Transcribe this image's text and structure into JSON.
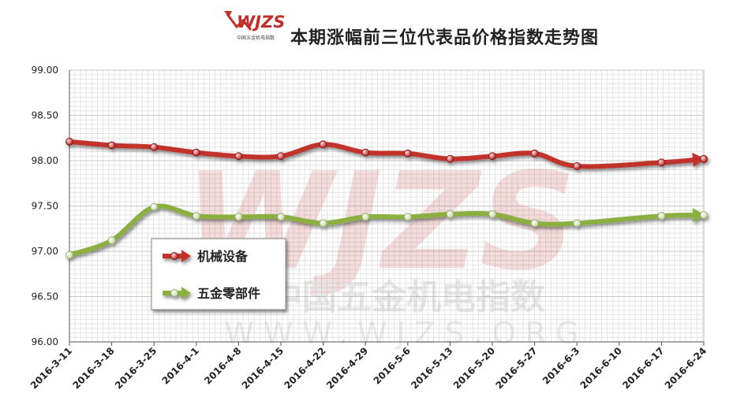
{
  "brand": {
    "logo_text": "WJZS",
    "logo_sub": "中国五金机电指数"
  },
  "watermark": {
    "main": "WJZS",
    "sub": "中国五金机电指数",
    "url": "WWW.WJZS.ORG"
  },
  "chart_data": {
    "type": "line",
    "title": "本期涨幅前三位代表品价格指数走势图",
    "xlabel": "",
    "ylabel": "",
    "categories": [
      "2016-3-11",
      "2016-3-18",
      "2016-3-25",
      "2016-4-1",
      "2016-4-8",
      "2016-4-15",
      "2016-4-22",
      "2016-4-29",
      "2016-5-6",
      "2016-5-13",
      "2016-5-20",
      "2016-5-27",
      "2016-6-3",
      "2016-6-10",
      "2016-6-17",
      "2016-6-24"
    ],
    "yticks": [
      "99.00",
      "98.50",
      "98.00",
      "97.50",
      "97.00",
      "96.50",
      "96.00"
    ],
    "ylim": [
      96,
      99
    ],
    "grid": true,
    "legend_position": "left-middle",
    "series": [
      {
        "name": "机械设备",
        "color": "#c0302a",
        "values": [
          98.21,
          98.17,
          98.15,
          98.09,
          98.05,
          98.05,
          98.18,
          98.09,
          98.08,
          98.02,
          98.05,
          98.08,
          97.94,
          null,
          97.98,
          98.02
        ]
      },
      {
        "name": "五金零部件",
        "color": "#8bb040",
        "values": [
          96.96,
          97.12,
          97.49,
          97.39,
          97.38,
          97.38,
          97.31,
          97.38,
          97.38,
          97.41,
          97.41,
          97.31,
          97.31,
          null,
          97.39,
          97.4
        ]
      }
    ]
  }
}
